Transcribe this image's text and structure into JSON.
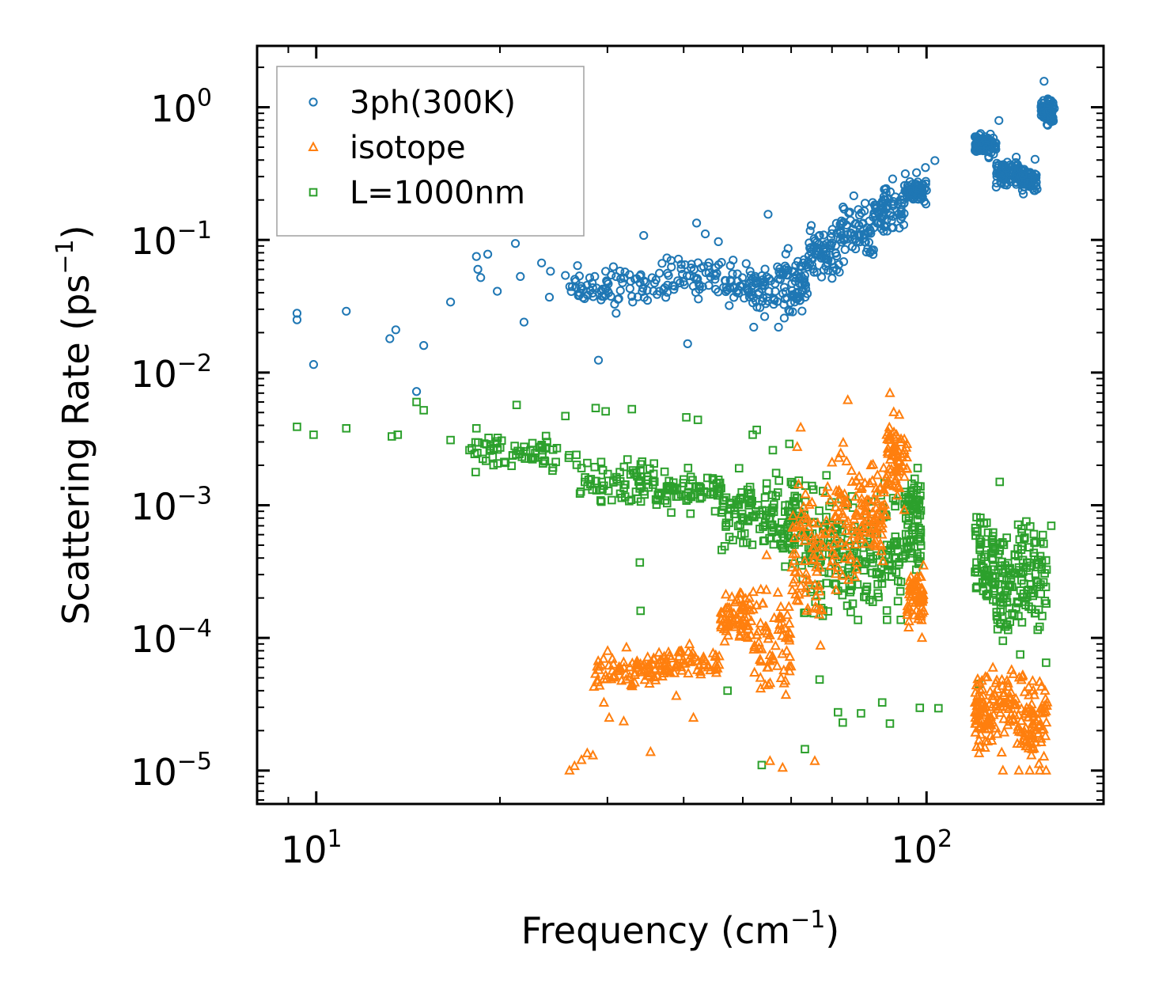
{
  "chart_data": {
    "type": "scatter",
    "title": "",
    "xlabel": "Frequency (cm",
    "xlabel_sup": "−1",
    "xlabel_end": ")",
    "ylabel": "Scattering Rate (ps",
    "ylabel_sup": "−1",
    "ylabel_end": ")",
    "xscale": "log",
    "yscale": "log",
    "xlim": [
      8.0,
      195.0
    ],
    "ylim": [
      5.6e-06,
      2.9
    ],
    "xticks": [
      {
        "base": "10",
        "exp": "1",
        "value": 10
      },
      {
        "base": "10",
        "exp": "2",
        "value": 100
      }
    ],
    "yticks": [
      {
        "base": "10",
        "exp": "0",
        "value": 1
      },
      {
        "base": "10",
        "exp": "−1",
        "value": 0.1
      },
      {
        "base": "10",
        "exp": "−2",
        "value": 0.01
      },
      {
        "base": "10",
        "exp": "−3",
        "value": 0.001
      },
      {
        "base": "10",
        "exp": "−4",
        "value": 0.0001
      },
      {
        "base": "10",
        "exp": "−5",
        "value": 1e-05
      }
    ],
    "legend_position": "top-left",
    "series": [
      {
        "name": "3ph(300K)",
        "marker": "circle",
        "color": "#1f77b4",
        "points": [
          [
            9.3,
            0.028
          ],
          [
            9.3,
            0.025
          ],
          [
            9.9,
            0.0115
          ],
          [
            11.2,
            0.029
          ],
          [
            13.2,
            0.018
          ],
          [
            13.5,
            0.021
          ],
          [
            14.6,
            0.0072
          ],
          [
            15.0,
            0.016
          ],
          [
            16.6,
            0.034
          ],
          [
            18.3,
            0.075
          ],
          [
            18.4,
            0.06
          ],
          [
            18.6,
            0.052
          ],
          [
            19.1,
            0.078
          ],
          [
            19.8,
            0.041
          ],
          [
            21.2,
            0.094
          ],
          [
            21.6,
            0.053
          ],
          [
            21.9,
            0.024
          ],
          [
            23.4,
            0.067
          ],
          [
            24.1,
            0.037
          ],
          [
            24.2,
            0.058
          ],
          [
            25.6,
            0.054
          ],
          [
            26.8,
            0.064
          ],
          [
            27.4,
            0.042
          ],
          [
            28.6,
            0.053
          ],
          [
            29.0,
            0.0124
          ],
          [
            31.0,
            0.028
          ],
          [
            33.0,
            0.034
          ],
          [
            34.4,
            0.108
          ],
          [
            36.5,
            0.041
          ],
          [
            40.2,
            0.065
          ],
          [
            40.6,
            0.0165
          ],
          [
            42.0,
            0.134
          ],
          [
            43.4,
            0.111
          ],
          [
            45.6,
            0.097
          ],
          [
            47.5,
            0.032
          ],
          [
            52.1,
            0.022
          ],
          [
            55.0,
            0.156
          ],
          [
            57.2,
            0.022
          ],
          [
            60.8,
            0.034
          ],
          [
            63.1,
            0.047
          ],
          [
            70.1,
            0.12
          ],
          [
            76.0,
            0.215
          ],
          [
            79.3,
            0.189
          ],
          [
            82.2,
            0.157
          ],
          [
            85.6,
            0.239
          ],
          [
            88.0,
            0.288
          ],
          [
            92.3,
            0.315
          ],
          [
            96.3,
            0.321
          ],
          [
            99.6,
            0.351
          ],
          [
            103.2,
            0.396
          ],
          [
            121.8,
            0.58
          ],
          [
            125.4,
            0.52
          ],
          [
            131.4,
            0.794
          ],
          [
            135.0,
            0.348
          ],
          [
            140.3,
            0.262
          ],
          [
            144.1,
            0.222
          ],
          [
            150.6,
            0.405
          ],
          [
            154.1,
            1.02
          ],
          [
            155.8,
            1.569
          ],
          [
            158.0,
            0.732
          ],
          [
            160.0,
            1.12
          ]
        ],
        "bands": [
          {
            "x": [
              26,
              36
            ],
            "y": [
              0.028,
              0.075
            ]
          },
          {
            "x": [
              36,
              48
            ],
            "y": [
              0.032,
              0.085
            ]
          },
          {
            "x": [
              48,
              57
            ],
            "y": [
              0.022,
              0.08
            ]
          },
          {
            "x": [
              57,
              64
            ],
            "y": [
              0.022,
              0.095
            ]
          },
          {
            "x": [
              64,
              72
            ],
            "y": [
              0.04,
              0.15
            ]
          },
          {
            "x": [
              72,
              82
            ],
            "y": [
              0.06,
              0.22
            ]
          },
          {
            "x": [
              82,
              92
            ],
            "y": [
              0.1,
              0.28
            ]
          },
          {
            "x": [
              92,
              100
            ],
            "y": [
              0.17,
              0.32
            ]
          },
          {
            "x": [
              120,
              130
            ],
            "y": [
              0.4,
              0.7
            ]
          },
          {
            "x": [
              130,
              142
            ],
            "y": [
              0.22,
              0.45
            ]
          },
          {
            "x": [
              142,
              152
            ],
            "y": [
              0.21,
              0.38
            ]
          },
          {
            "x": [
              154,
              162
            ],
            "y": [
              0.7,
              1.3
            ]
          }
        ]
      },
      {
        "name": "isotope",
        "marker": "triangle",
        "color": "#ff7f0e",
        "points": [
          [
            26.0,
            1e-05
          ],
          [
            26.5,
            1.08e-05
          ],
          [
            27.2,
            1.2e-05
          ],
          [
            27.8,
            1.35e-05
          ],
          [
            28.4,
            1.3e-05
          ],
          [
            29.6,
            3.25e-05
          ],
          [
            30.2,
            2.5e-05
          ],
          [
            31.9,
            2.35e-05
          ],
          [
            34.0,
            5.5e-05
          ],
          [
            35.3,
            1.38e-05
          ],
          [
            38.9,
            3.65e-05
          ],
          [
            41.5,
            2.5e-05
          ],
          [
            46.1,
            0.00012
          ],
          [
            54.7,
            0.00042
          ],
          [
            55.4,
            1.18e-05
          ],
          [
            58.1,
            1.05e-05
          ],
          [
            61.4,
            0.00275
          ],
          [
            62.2,
            0.00385
          ],
          [
            65.6,
            1.18e-05
          ],
          [
            70.0,
            0.0021
          ],
          [
            74.3,
            0.0062
          ],
          [
            81.1,
            0.002
          ],
          [
            87.1,
            0.007
          ],
          [
            90.2,
            0.0048
          ],
          [
            95.5,
            0.000148
          ],
          [
            98.3,
            0.0001
          ],
          [
            121.9,
            1.35e-05
          ],
          [
            133.4,
            1e-05
          ],
          [
            141.7,
            1e-05
          ],
          [
            147.6,
            1e-05
          ],
          [
            153.3,
            1e-05
          ],
          [
            157.0,
            1e-05
          ]
        ],
        "bands": [
          {
            "x": [
              28.5,
              36
            ],
            "y": [
              3.5e-05,
              9e-05
            ]
          },
          {
            "x": [
              36,
              46
            ],
            "y": [
              4.5e-05,
              9.5e-05
            ]
          },
          {
            "x": [
              46,
              52
            ],
            "y": [
              8e-05,
              0.00025
            ]
          },
          {
            "x": [
              52,
              60
            ],
            "y": [
              2e-05,
              0.0006
            ]
          },
          {
            "x": [
              60,
              68
            ],
            "y": [
              5e-05,
              0.0025
            ]
          },
          {
            "x": [
              68,
              78
            ],
            "y": [
              0.00012,
              0.0048
            ]
          },
          {
            "x": [
              78,
              86
            ],
            "y": [
              0.0003,
              0.0025
            ]
          },
          {
            "x": [
              86,
              93
            ],
            "y": [
              0.0008,
              0.0065
            ]
          },
          {
            "x": [
              93,
              99
            ],
            "y": [
              0.0001,
              0.0004
            ]
          },
          {
            "x": [
              120,
              128
            ],
            "y": [
              1.2e-05,
              6e-05
            ]
          },
          {
            "x": [
              128,
              145
            ],
            "y": [
              1e-05,
              9e-05
            ]
          },
          {
            "x": [
              145,
              158
            ],
            "y": [
              1e-05,
              6e-05
            ]
          }
        ]
      },
      {
        "name": "L=1000nm",
        "marker": "square",
        "color": "#2ca02c",
        "points": [
          [
            9.3,
            0.0039
          ],
          [
            9.9,
            0.0034
          ],
          [
            11.2,
            0.0038
          ],
          [
            13.3,
            0.0033
          ],
          [
            13.6,
            0.0034
          ],
          [
            14.6,
            0.006
          ],
          [
            15.0,
            0.0052
          ],
          [
            16.6,
            0.0031
          ],
          [
            18.3,
            0.0038
          ],
          [
            21.3,
            0.0057
          ],
          [
            25.6,
            0.0047
          ],
          [
            28.7,
            0.0054
          ],
          [
            29.8,
            0.0051
          ],
          [
            32.9,
            0.0053
          ],
          [
            33.9,
            0.00037
          ],
          [
            34.0,
            0.00016
          ],
          [
            40.4,
            0.0046
          ],
          [
            42.2,
            0.0044
          ],
          [
            47.2,
            4e-05
          ],
          [
            49.3,
            0.0019
          ],
          [
            51.9,
            0.0034
          ],
          [
            52.7,
            0.0037
          ],
          [
            53.7,
            1.1e-05
          ],
          [
            56.0,
            0.0026
          ],
          [
            59.6,
            0.0029
          ],
          [
            63.2,
            1.45e-05
          ],
          [
            66.8,
            4.85e-05
          ],
          [
            71.6,
            2.75e-05
          ],
          [
            72.9,
            2.3e-05
          ],
          [
            78.1,
            2.7e-05
          ],
          [
            84.6,
            3.26e-05
          ],
          [
            87.1,
            2.26e-05
          ],
          [
            97.5,
            2.97e-05
          ],
          [
            104.6,
            2.95e-05
          ],
          [
            121.8,
            4.5e-05
          ],
          [
            131.8,
            0.0015
          ],
          [
            142.4,
            7.5e-05
          ],
          [
            152.1,
            0.000115
          ],
          [
            156.3,
            0.00019
          ],
          [
            157.0,
            6.5e-05
          ],
          [
            160.1,
            0.0007
          ]
        ],
        "bands": [
          {
            "x": [
              17.5,
              27
            ],
            "y": [
              0.0016,
              0.0037
            ]
          },
          {
            "x": [
              27,
              36
            ],
            "y": [
              0.0009,
              0.0026
            ]
          },
          {
            "x": [
              36,
              46
            ],
            "y": [
              0.0008,
              0.0021
            ]
          },
          {
            "x": [
              46,
              55
            ],
            "y": [
              0.00035,
              0.002
            ]
          },
          {
            "x": [
              55,
              62
            ],
            "y": [
              0.0003,
              0.0022
            ]
          },
          {
            "x": [
              62,
              70
            ],
            "y": [
              0.0001,
              0.0024
            ]
          },
          {
            "x": [
              70,
              80
            ],
            "y": [
              9e-05,
              0.0016
            ]
          },
          {
            "x": [
              80,
              92
            ],
            "y": [
              9e-05,
              0.0018
            ]
          },
          {
            "x": [
              92,
              98
            ],
            "y": [
              0.0002,
              0.0026
            ]
          },
          {
            "x": [
              120,
              130
            ],
            "y": [
              0.0001,
              0.0011
            ]
          },
          {
            "x": [
              130,
              142
            ],
            "y": [
              5e-05,
              0.0012
            ]
          },
          {
            "x": [
              142,
              158
            ],
            "y": [
              8e-05,
              0.0011
            ]
          }
        ]
      }
    ]
  }
}
